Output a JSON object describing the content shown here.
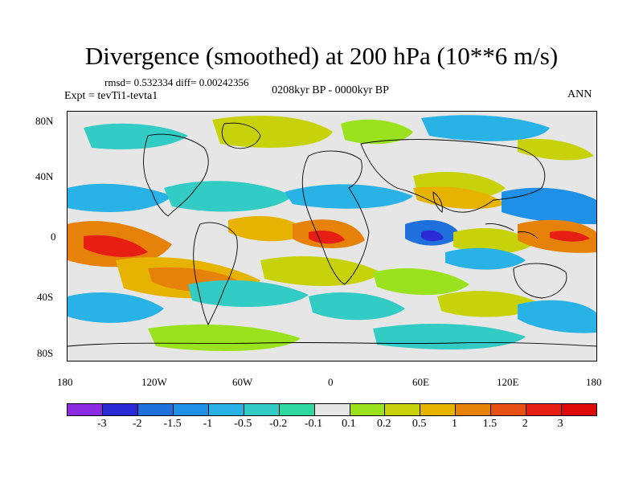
{
  "title": "Divergence (smoothed) at 200 hPa (10**6 m/s)",
  "stats": "rmsd= 0.532334 diff= 0.00242356",
  "experiment": "Expt = tevTi1-tevta1",
  "period": "0208kyr BP - 0000kyr BP",
  "season": "ANN",
  "axes": {
    "lat_labels": [
      "80N",
      "40N",
      "0",
      "40S",
      "80S"
    ],
    "lon_labels": [
      "180",
      "120W",
      "60W",
      "0",
      "60E",
      "120E",
      "180"
    ]
  },
  "colorbar": {
    "labels": [
      "-3",
      "-2",
      "-1.5",
      "-1",
      "-0.5",
      "-0.2",
      "-0.1",
      "0.1",
      "0.2",
      "0.5",
      "1",
      "1.5",
      "2",
      "3"
    ],
    "colors": [
      "#8a2be2",
      "#2b2bd6",
      "#1f6fdc",
      "#1e90e6",
      "#29b2e6",
      "#33ccc4",
      "#2ed8a0",
      "#e6e6e6",
      "#9be21e",
      "#c8d20a",
      "#e6b400",
      "#e6820a",
      "#e65014",
      "#e61e14",
      "#dc0a0a"
    ]
  },
  "colors": {
    "neutral": "#e6e6e6",
    "coast": "#000000"
  }
}
